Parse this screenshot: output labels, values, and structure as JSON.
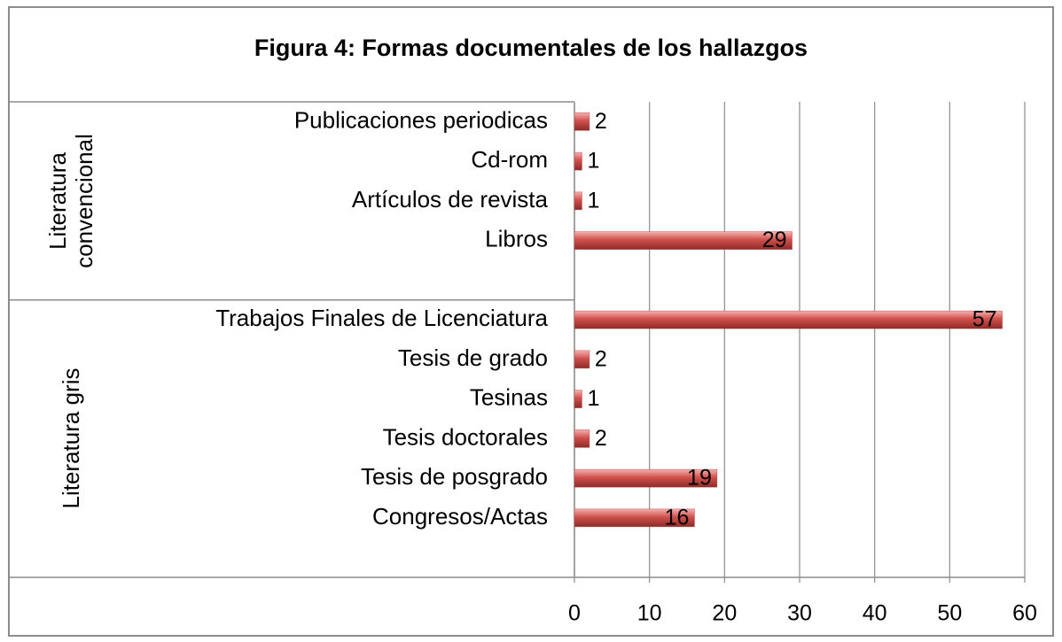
{
  "chart_data": {
    "type": "bar",
    "orientation": "horizontal",
    "title": "Figura 4: Formas documentales de los hallazgos",
    "color": "#c0504d",
    "groups": [
      {
        "name": "Literatura convencional",
        "categories": [
          "Publicaciones periodicas",
          "Cd-rom",
          "Artículos de revista",
          "Libros"
        ],
        "values": [
          2,
          1,
          1,
          29
        ]
      },
      {
        "name": "Literatura gris",
        "categories": [
          "Trabajos Finales de Licenciatura",
          "Tesis de grado",
          "Tesinas",
          "Tesis doctorales",
          "Tesis de posgrado",
          "Congresos/Actas"
        ],
        "values": [
          57,
          2,
          1,
          2,
          19,
          16
        ]
      }
    ],
    "xlim": [
      0,
      60
    ],
    "xticks": [
      0,
      10,
      20,
      30,
      40,
      50,
      60
    ],
    "grid": true
  }
}
